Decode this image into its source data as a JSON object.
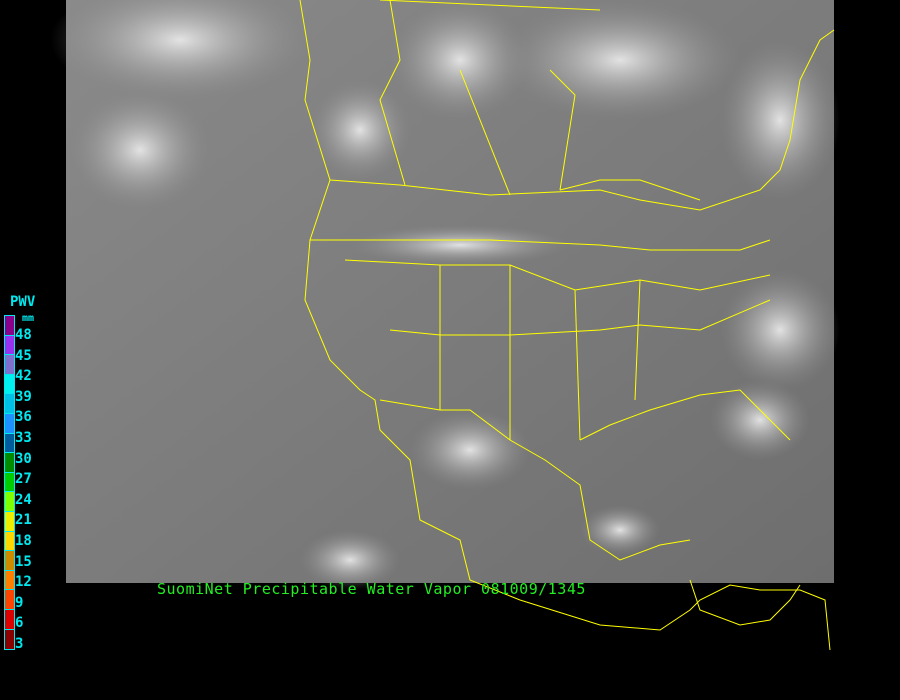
{
  "title": "SuomiNet Precipitable Water Vapor 081009/1345",
  "legend": {
    "title": "PWV",
    "unit": "mm",
    "colors": [
      "#8b008b",
      "#9a30f0",
      "#7f70d0",
      "#00f0f0",
      "#00c0e8",
      "#1e90ff",
      "#005c9c",
      "#008b00",
      "#00cd00",
      "#7fff00",
      "#eeee00",
      "#ffd700",
      "#cd8b00",
      "#ff8000",
      "#ff4500",
      "#dd0000",
      "#8b0000"
    ],
    "labels": [
      "48",
      "45",
      "42",
      "39",
      "36",
      "33",
      "30",
      "27",
      "24",
      "21",
      "18",
      "15",
      "12",
      "9",
      "6",
      "3"
    ]
  },
  "map": {
    "border_color": "#ffff00",
    "background": "infrared satellite imagery"
  }
}
